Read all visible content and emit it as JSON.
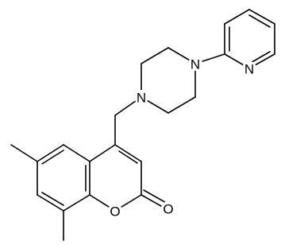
{
  "nodes": [
    {
      "label": "N"
    },
    {
      "label": "N"
    },
    {
      "label": "N"
    },
    {
      "label": "O"
    },
    {
      "label": "O"
    }
  ]
}
